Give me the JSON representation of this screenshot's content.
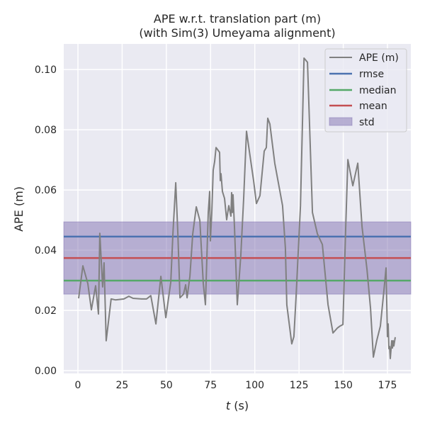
{
  "chart_data": {
    "type": "line",
    "title": "APE w.r.t. translation part (m)",
    "subtitle": "(with Sim(3) Umeyama alignment)",
    "xlabel_var": "t",
    "xlabel_unit": " (s)",
    "ylabel": "APE (m)",
    "xlim": [
      -8.0,
      188.2
    ],
    "ylim": [
      -0.00094,
      0.1085
    ],
    "xticks": [
      0,
      25,
      50,
      75,
      100,
      125,
      150,
      175
    ],
    "xtick_labels": [
      "0",
      "25",
      "50",
      "75",
      "100",
      "125",
      "150",
      "175"
    ],
    "yticks": [
      0.0,
      0.02,
      0.04,
      0.06,
      0.08,
      0.1
    ],
    "ytick_labels": [
      "0.00",
      "0.02",
      "0.04",
      "0.06",
      "0.08",
      "0.10"
    ],
    "grid": true,
    "legend_position": "top-right",
    "colors": {
      "ape": "#808080",
      "rmse": "#4c72b0",
      "median": "#55a868",
      "mean": "#c44e52",
      "std": "#8172b2",
      "background": "#eaeaf2"
    },
    "stats": {
      "rmse": 0.0445,
      "median": 0.0299,
      "mean": 0.0374,
      "std_low": 0.0254,
      "std_high": 0.0494
    },
    "legend": [
      "APE (m)",
      "rmse",
      "median",
      "mean",
      "std"
    ],
    "series": [
      {
        "name": "APE (m)",
        "x": [
          0.4,
          2.8,
          5.6,
          7.6,
          10.0,
          11.6,
          12.4,
          14.0,
          14.8,
          16.0,
          18.8,
          21.2,
          26.0,
          27.2,
          28.8,
          31.2,
          36.0,
          38.8,
          41.2,
          44.1,
          46.9,
          49.7,
          52.5,
          53.7,
          55.3,
          56.5,
          57.7,
          59.7,
          60.9,
          61.7,
          63.3,
          64.9,
          66.9,
          68.9,
          70.9,
          72.1,
          73.7,
          74.5,
          74.9,
          75.7,
          76.5,
          77.3,
          78.1,
          80.1,
          80.5,
          80.9,
          81.7,
          82.9,
          84.1,
          85.3,
          86.5,
          86.9,
          87.3,
          87.7,
          88.5,
          90.1,
          92.1,
          93.7,
          95.3,
          97.3,
          99.3,
          100.9,
          102.9,
          105.3,
          106.5,
          107.3,
          108.5,
          111.3,
          115.7,
          117.3,
          118.1,
          120.9,
          122.1,
          123.3,
          125.8,
          127.8,
          129.8,
          132.6,
          135.4,
          138.2,
          141.4,
          144.2,
          146.6,
          148.2,
          149.8,
          151.4,
          152.6,
          155.4,
          158.2,
          160.6,
          163.4,
          165.4,
          167.0,
          169.0,
          171.0,
          173.0,
          174.2,
          175.0,
          175.4,
          175.8,
          176.2,
          176.6,
          177.4,
          177.8,
          178.2,
          178.6,
          179.4
        ],
        "y": [
          0.024,
          0.0348,
          0.0289,
          0.0202,
          0.0282,
          0.0188,
          0.0456,
          0.0278,
          0.0358,
          0.0099,
          0.0238,
          0.0235,
          0.0238,
          0.0242,
          0.0247,
          0.024,
          0.0238,
          0.0238,
          0.0249,
          0.0155,
          0.0313,
          0.0176,
          0.0294,
          0.0454,
          0.0624,
          0.0454,
          0.0242,
          0.0254,
          0.0285,
          0.0242,
          0.0313,
          0.0454,
          0.0544,
          0.0499,
          0.0289,
          0.0219,
          0.0525,
          0.0595,
          0.0431,
          0.0525,
          0.0666,
          0.0694,
          0.0741,
          0.0725,
          0.0631,
          0.0654,
          0.0595,
          0.0572,
          0.0501,
          0.0548,
          0.0513,
          0.0591,
          0.0525,
          0.0584,
          0.0478,
          0.0219,
          0.0384,
          0.0572,
          0.0795,
          0.0713,
          0.0631,
          0.0555,
          0.0581,
          0.0729,
          0.0741,
          0.0838,
          0.0819,
          0.0689,
          0.0548,
          0.0407,
          0.0219,
          0.0089,
          0.0113,
          0.0242,
          0.0548,
          0.1038,
          0.1024,
          0.0525,
          0.0454,
          0.0419,
          0.0219,
          0.0125,
          0.0141,
          0.0148,
          0.0153,
          0.0478,
          0.0701,
          0.0614,
          0.0689,
          0.0478,
          0.0336,
          0.0207,
          0.0045,
          0.0101,
          0.0148,
          0.0266,
          0.0341,
          0.0113,
          0.0155,
          0.0073,
          0.008,
          0.004,
          0.0099,
          0.0075,
          0.0099,
          0.0082,
          0.0111
        ]
      }
    ]
  }
}
